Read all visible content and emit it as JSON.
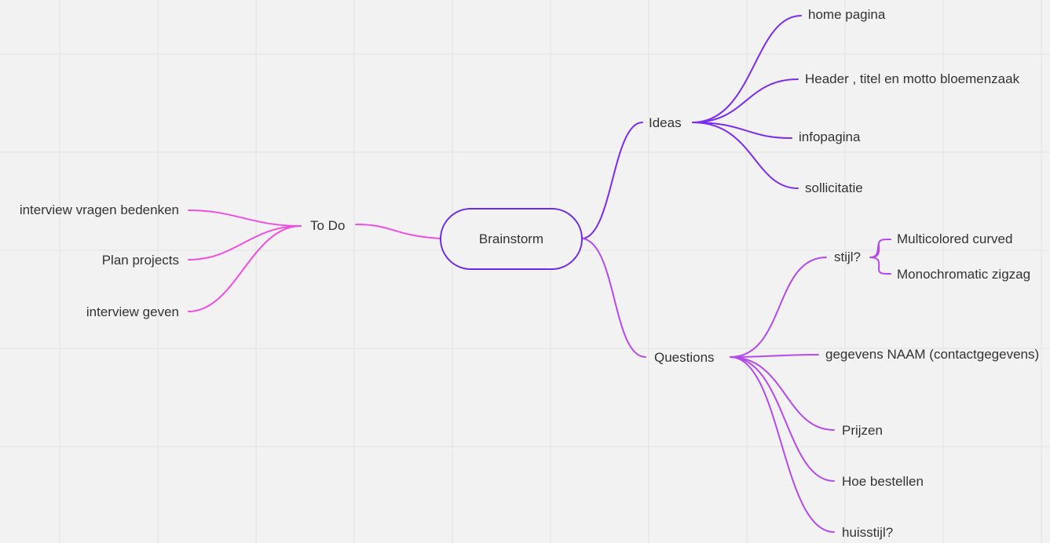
{
  "colors": {
    "background": "#f2f2f2",
    "grid": "#e3e3e3",
    "todo_branch": "#ee4fe0",
    "ideas_branch": "#7a2cef",
    "questions_branch": "#b34ae9",
    "central_border": "#6a2be8",
    "text": "#333333"
  },
  "mindmap": {
    "central": "Brainstorm",
    "todo": {
      "label": "To Do",
      "children": [
        "interview vragen bedenken",
        "Plan projects",
        "interview geven"
      ]
    },
    "ideas": {
      "label": "Ideas",
      "children": [
        "home pagina",
        "Header , titel en motto bloemenzaak",
        "infopagina",
        "sollicitatie"
      ]
    },
    "questions": {
      "label": "Questions",
      "stijl": {
        "label": "stijl?",
        "options": [
          "Multicolored curved",
          "Monochromatic zigzag"
        ]
      },
      "children": [
        "gegevens NAAM (contactgegevens)",
        "Prijzen",
        "Hoe bestellen",
        "huisstijl?"
      ]
    }
  }
}
